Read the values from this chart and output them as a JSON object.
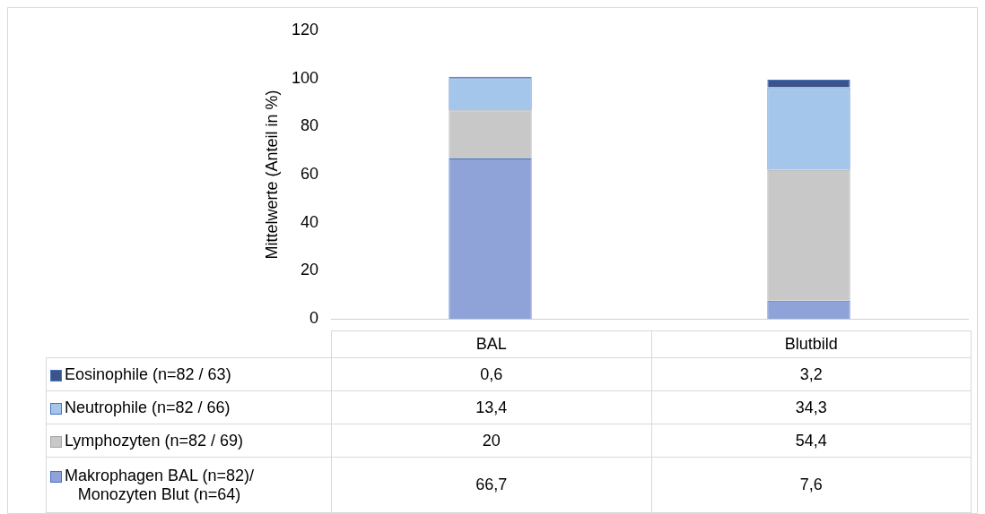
{
  "chart_data": {
    "type": "bar",
    "stacked": true,
    "ylabel": "Mittelwerte (Anteil in %)",
    "categories": [
      "BAL",
      "Blutbild"
    ],
    "ylim": [
      0,
      120
    ],
    "yticks": [
      0,
      20,
      40,
      60,
      80,
      100,
      120
    ],
    "grid": false,
    "legend": "bottom",
    "series": [
      {
        "name": "Makrophagen BAL (n=82)/\nMonozyten Blut (n=64)",
        "color": "#8fa3d9",
        "values": [
          66.7,
          7.6
        ],
        "value_labels": [
          "66,7",
          "7,6"
        ]
      },
      {
        "name": "Lymphozyten (n=82 / 69)",
        "color": "#c8c8c8",
        "values": [
          20,
          54.4
        ],
        "value_labels": [
          "20",
          "54,4"
        ]
      },
      {
        "name": "Neutrophile (n=82 / 66)",
        "color": "#a3c6ea",
        "values": [
          13.4,
          34.3
        ],
        "value_labels": [
          "13,4",
          "34,3"
        ]
      },
      {
        "name": "Eosinophile (n=82 / 63)",
        "color": "#3b5488",
        "values": [
          0.6,
          3.2
        ],
        "value_labels": [
          "0,6",
          "3,2"
        ]
      }
    ]
  }
}
